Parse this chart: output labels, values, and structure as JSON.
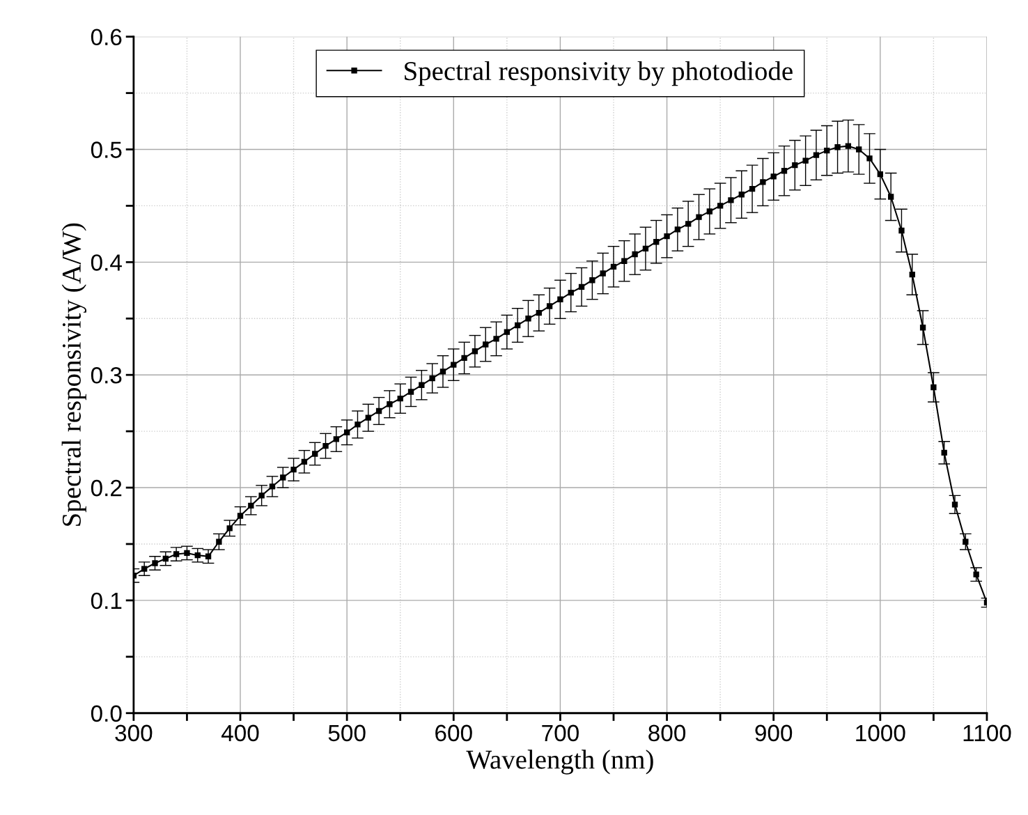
{
  "chart_data": {
    "type": "line",
    "xlabel": "Wavelength (nm)",
    "ylabel": "Spectral responsivity (A/W)",
    "x": [
      300,
      310,
      320,
      330,
      340,
      350,
      360,
      370,
      380,
      390,
      400,
      410,
      420,
      430,
      440,
      450,
      460,
      470,
      480,
      490,
      500,
      510,
      520,
      530,
      540,
      550,
      560,
      570,
      580,
      590,
      600,
      610,
      620,
      630,
      640,
      650,
      660,
      670,
      680,
      690,
      700,
      710,
      720,
      730,
      740,
      750,
      760,
      770,
      780,
      790,
      800,
      810,
      820,
      830,
      840,
      850,
      860,
      870,
      880,
      890,
      900,
      910,
      920,
      930,
      940,
      950,
      960,
      970,
      980,
      990,
      1000,
      1010,
      1020,
      1030,
      1040,
      1050,
      1060,
      1070,
      1080,
      1090,
      1100
    ],
    "series": [
      {
        "name": "Spectral responsivity by photodiode",
        "color": "#000000",
        "values": [
          0.122,
          0.128,
          0.133,
          0.137,
          0.141,
          0.142,
          0.14,
          0.139,
          0.152,
          0.164,
          0.175,
          0.184,
          0.193,
          0.201,
          0.209,
          0.216,
          0.223,
          0.23,
          0.237,
          0.243,
          0.249,
          0.256,
          0.262,
          0.268,
          0.274,
          0.279,
          0.285,
          0.291,
          0.297,
          0.303,
          0.309,
          0.315,
          0.321,
          0.327,
          0.332,
          0.338,
          0.344,
          0.35,
          0.355,
          0.361,
          0.367,
          0.373,
          0.378,
          0.384,
          0.39,
          0.396,
          0.401,
          0.407,
          0.412,
          0.418,
          0.423,
          0.429,
          0.434,
          0.44,
          0.445,
          0.45,
          0.455,
          0.46,
          0.465,
          0.471,
          0.476,
          0.481,
          0.486,
          0.49,
          0.495,
          0.499,
          0.502,
          0.503,
          0.5,
          0.492,
          0.478,
          0.458,
          0.428,
          0.389,
          0.342,
          0.289,
          0.231,
          0.185,
          0.152,
          0.123,
          0.098
        ],
        "errors": [
          0.006,
          0.006,
          0.006,
          0.006,
          0.006,
          0.006,
          0.006,
          0.006,
          0.007,
          0.007,
          0.008,
          0.008,
          0.009,
          0.009,
          0.009,
          0.01,
          0.01,
          0.01,
          0.011,
          0.011,
          0.011,
          0.012,
          0.012,
          0.012,
          0.012,
          0.013,
          0.013,
          0.013,
          0.013,
          0.014,
          0.014,
          0.014,
          0.014,
          0.015,
          0.015,
          0.015,
          0.015,
          0.016,
          0.016,
          0.016,
          0.017,
          0.017,
          0.017,
          0.017,
          0.018,
          0.018,
          0.018,
          0.018,
          0.019,
          0.019,
          0.019,
          0.019,
          0.02,
          0.02,
          0.02,
          0.02,
          0.02,
          0.021,
          0.021,
          0.021,
          0.021,
          0.022,
          0.022,
          0.022,
          0.022,
          0.022,
          0.023,
          0.023,
          0.022,
          0.022,
          0.022,
          0.021,
          0.019,
          0.018,
          0.015,
          0.013,
          0.01,
          0.008,
          0.007,
          0.006,
          0.004
        ]
      }
    ],
    "xlim": [
      300,
      1100
    ],
    "xticks": [
      300,
      {
        "value": 350,
        "label": null
      },
      400,
      {
        "value": 450,
        "label": null
      },
      500,
      {
        "value": 550,
        "label": null
      },
      600,
      {
        "value": 650,
        "label": null
      },
      700,
      {
        "value": 750,
        "label": null
      },
      800,
      {
        "value": 850,
        "label": null
      },
      900,
      {
        "value": 950,
        "label": null
      },
      1000,
      {
        "value": 1050,
        "label": null
      },
      1100
    ],
    "ylim": [
      0,
      0.6
    ],
    "yticks": [
      {
        "value": 0,
        "label": "0.0"
      },
      {
        "value": 0.05,
        "label": null
      },
      0.1,
      {
        "value": 0.15,
        "label": null
      },
      0.2,
      {
        "value": 0.25,
        "label": null
      },
      0.3,
      {
        "value": 0.35,
        "label": null
      },
      0.4,
      {
        "value": 0.45,
        "label": null
      },
      0.5,
      {
        "value": 0.55,
        "label": null
      },
      0.6
    ],
    "grid": true,
    "legend": "top",
    "marker": "square",
    "line_style": "solid"
  }
}
